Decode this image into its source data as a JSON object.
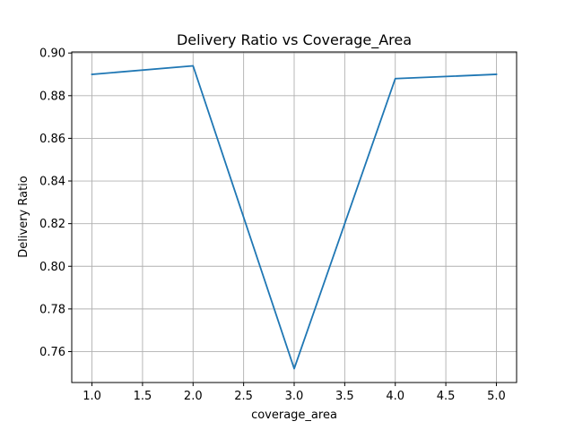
{
  "chart_data": {
    "type": "line",
    "title": "Delivery Ratio vs Coverage_Area",
    "xlabel": "coverage_area",
    "ylabel": "Delivery Ratio",
    "xlim": [
      0.8,
      5.2
    ],
    "ylim": [
      0.7455,
      0.9005
    ],
    "xticks": [
      1.0,
      1.5,
      2.0,
      2.5,
      3.0,
      3.5,
      4.0,
      4.5,
      5.0
    ],
    "xtick_labels": [
      "1.0",
      "1.5",
      "2.0",
      "2.5",
      "3.0",
      "3.5",
      "4.0",
      "4.5",
      "5.0"
    ],
    "yticks": [
      0.76,
      0.78,
      0.8,
      0.82,
      0.84,
      0.86,
      0.88,
      0.9
    ],
    "ytick_labels": [
      "0.76",
      "0.78",
      "0.80",
      "0.82",
      "0.84",
      "0.86",
      "0.88",
      "0.90"
    ],
    "grid": true,
    "series": [
      {
        "x": [
          1.0,
          2.0,
          3.0,
          4.0,
          5.0
        ],
        "y": [
          0.89,
          0.894,
          0.752,
          0.888,
          0.89
        ],
        "color": "#1f77b4"
      }
    ]
  }
}
